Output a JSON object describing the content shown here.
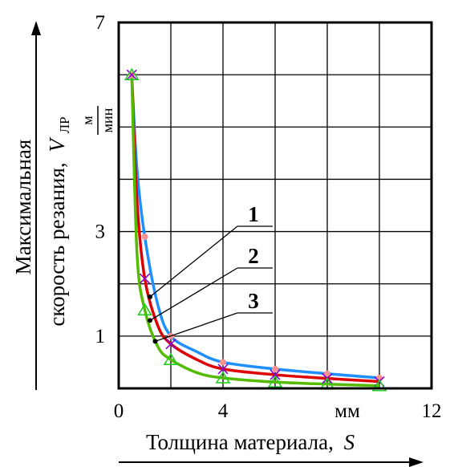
{
  "chart_data": {
    "type": "line",
    "xlabel": "Толщина материала,",
    "xlabel_var": "S",
    "ylabel_line1": "Максимальная",
    "ylabel_line2": "скорость резания,",
    "ylabel_var": "V",
    "ylabel_sub": "ЛР",
    "y_unit_num": "м",
    "y_unit_den": "мин",
    "x_unit": "мм",
    "xlim": [
      0,
      12
    ],
    "ylim": [
      0,
      7
    ],
    "x_ticks": [
      0,
      2,
      4,
      6,
      8,
      10,
      12
    ],
    "y_ticks": [
      0,
      1,
      2,
      3,
      4,
      5,
      6,
      7
    ],
    "x_tick_labels": [
      {
        "x": 0,
        "label": "0"
      },
      {
        "x": 4,
        "label": "4"
      },
      {
        "x": 12,
        "label": "12"
      }
    ],
    "y_tick_labels": [
      {
        "y": 1,
        "label": "1"
      },
      {
        "y": 3,
        "label": "3"
      },
      {
        "y": 7,
        "label": "7"
      }
    ],
    "grid": true,
    "series": [
      {
        "name": "1",
        "color": "#1f8fff",
        "x": [
          0.5,
          0.7,
          1.0,
          1.5,
          2.0,
          3.0,
          4.0,
          6.0,
          8.0,
          10.0
        ],
        "y": [
          6.0,
          4.2,
          2.9,
          1.6,
          1.0,
          0.7,
          0.5,
          0.37,
          0.28,
          0.2
        ],
        "markers_x": [
          0.5,
          1.0,
          2.0,
          4.0,
          6.0,
          8.0,
          10.0
        ],
        "markers_y": [
          6.0,
          2.9,
          1.0,
          0.5,
          0.37,
          0.28,
          0.2
        ]
      },
      {
        "name": "2",
        "color": "#dd0000",
        "x": [
          0.5,
          0.7,
          1.0,
          1.5,
          2.0,
          3.0,
          4.0,
          6.0,
          8.0,
          10.0
        ],
        "y": [
          6.0,
          3.6,
          2.1,
          1.2,
          0.85,
          0.55,
          0.37,
          0.26,
          0.19,
          0.13
        ],
        "markers_x": [
          0.5,
          1.0,
          2.0,
          4.0,
          6.0,
          8.0,
          10.0
        ],
        "markers_y": [
          6.0,
          2.1,
          0.85,
          0.37,
          0.26,
          0.19,
          0.13
        ]
      },
      {
        "name": "3",
        "color": "#55bb00",
        "x": [
          0.5,
          0.7,
          1.0,
          1.5,
          2.0,
          3.0,
          4.0,
          6.0,
          8.0,
          10.0
        ],
        "y": [
          6.0,
          2.6,
          1.5,
          0.8,
          0.55,
          0.3,
          0.2,
          0.12,
          0.08,
          0.05
        ],
        "markers_x": [
          0.5,
          1.0,
          2.0,
          4.0,
          6.0,
          8.0,
          10.0
        ],
        "markers_y": [
          6.0,
          1.5,
          0.55,
          0.2,
          0.12,
          0.08,
          0.05
        ]
      }
    ],
    "callouts": [
      {
        "label": "1",
        "point_x": 1.2,
        "point_y": 1.75
      },
      {
        "label": "2",
        "point_x": 1.2,
        "point_y": 1.3
      },
      {
        "label": "3",
        "point_x": 1.4,
        "point_y": 0.9
      }
    ]
  }
}
